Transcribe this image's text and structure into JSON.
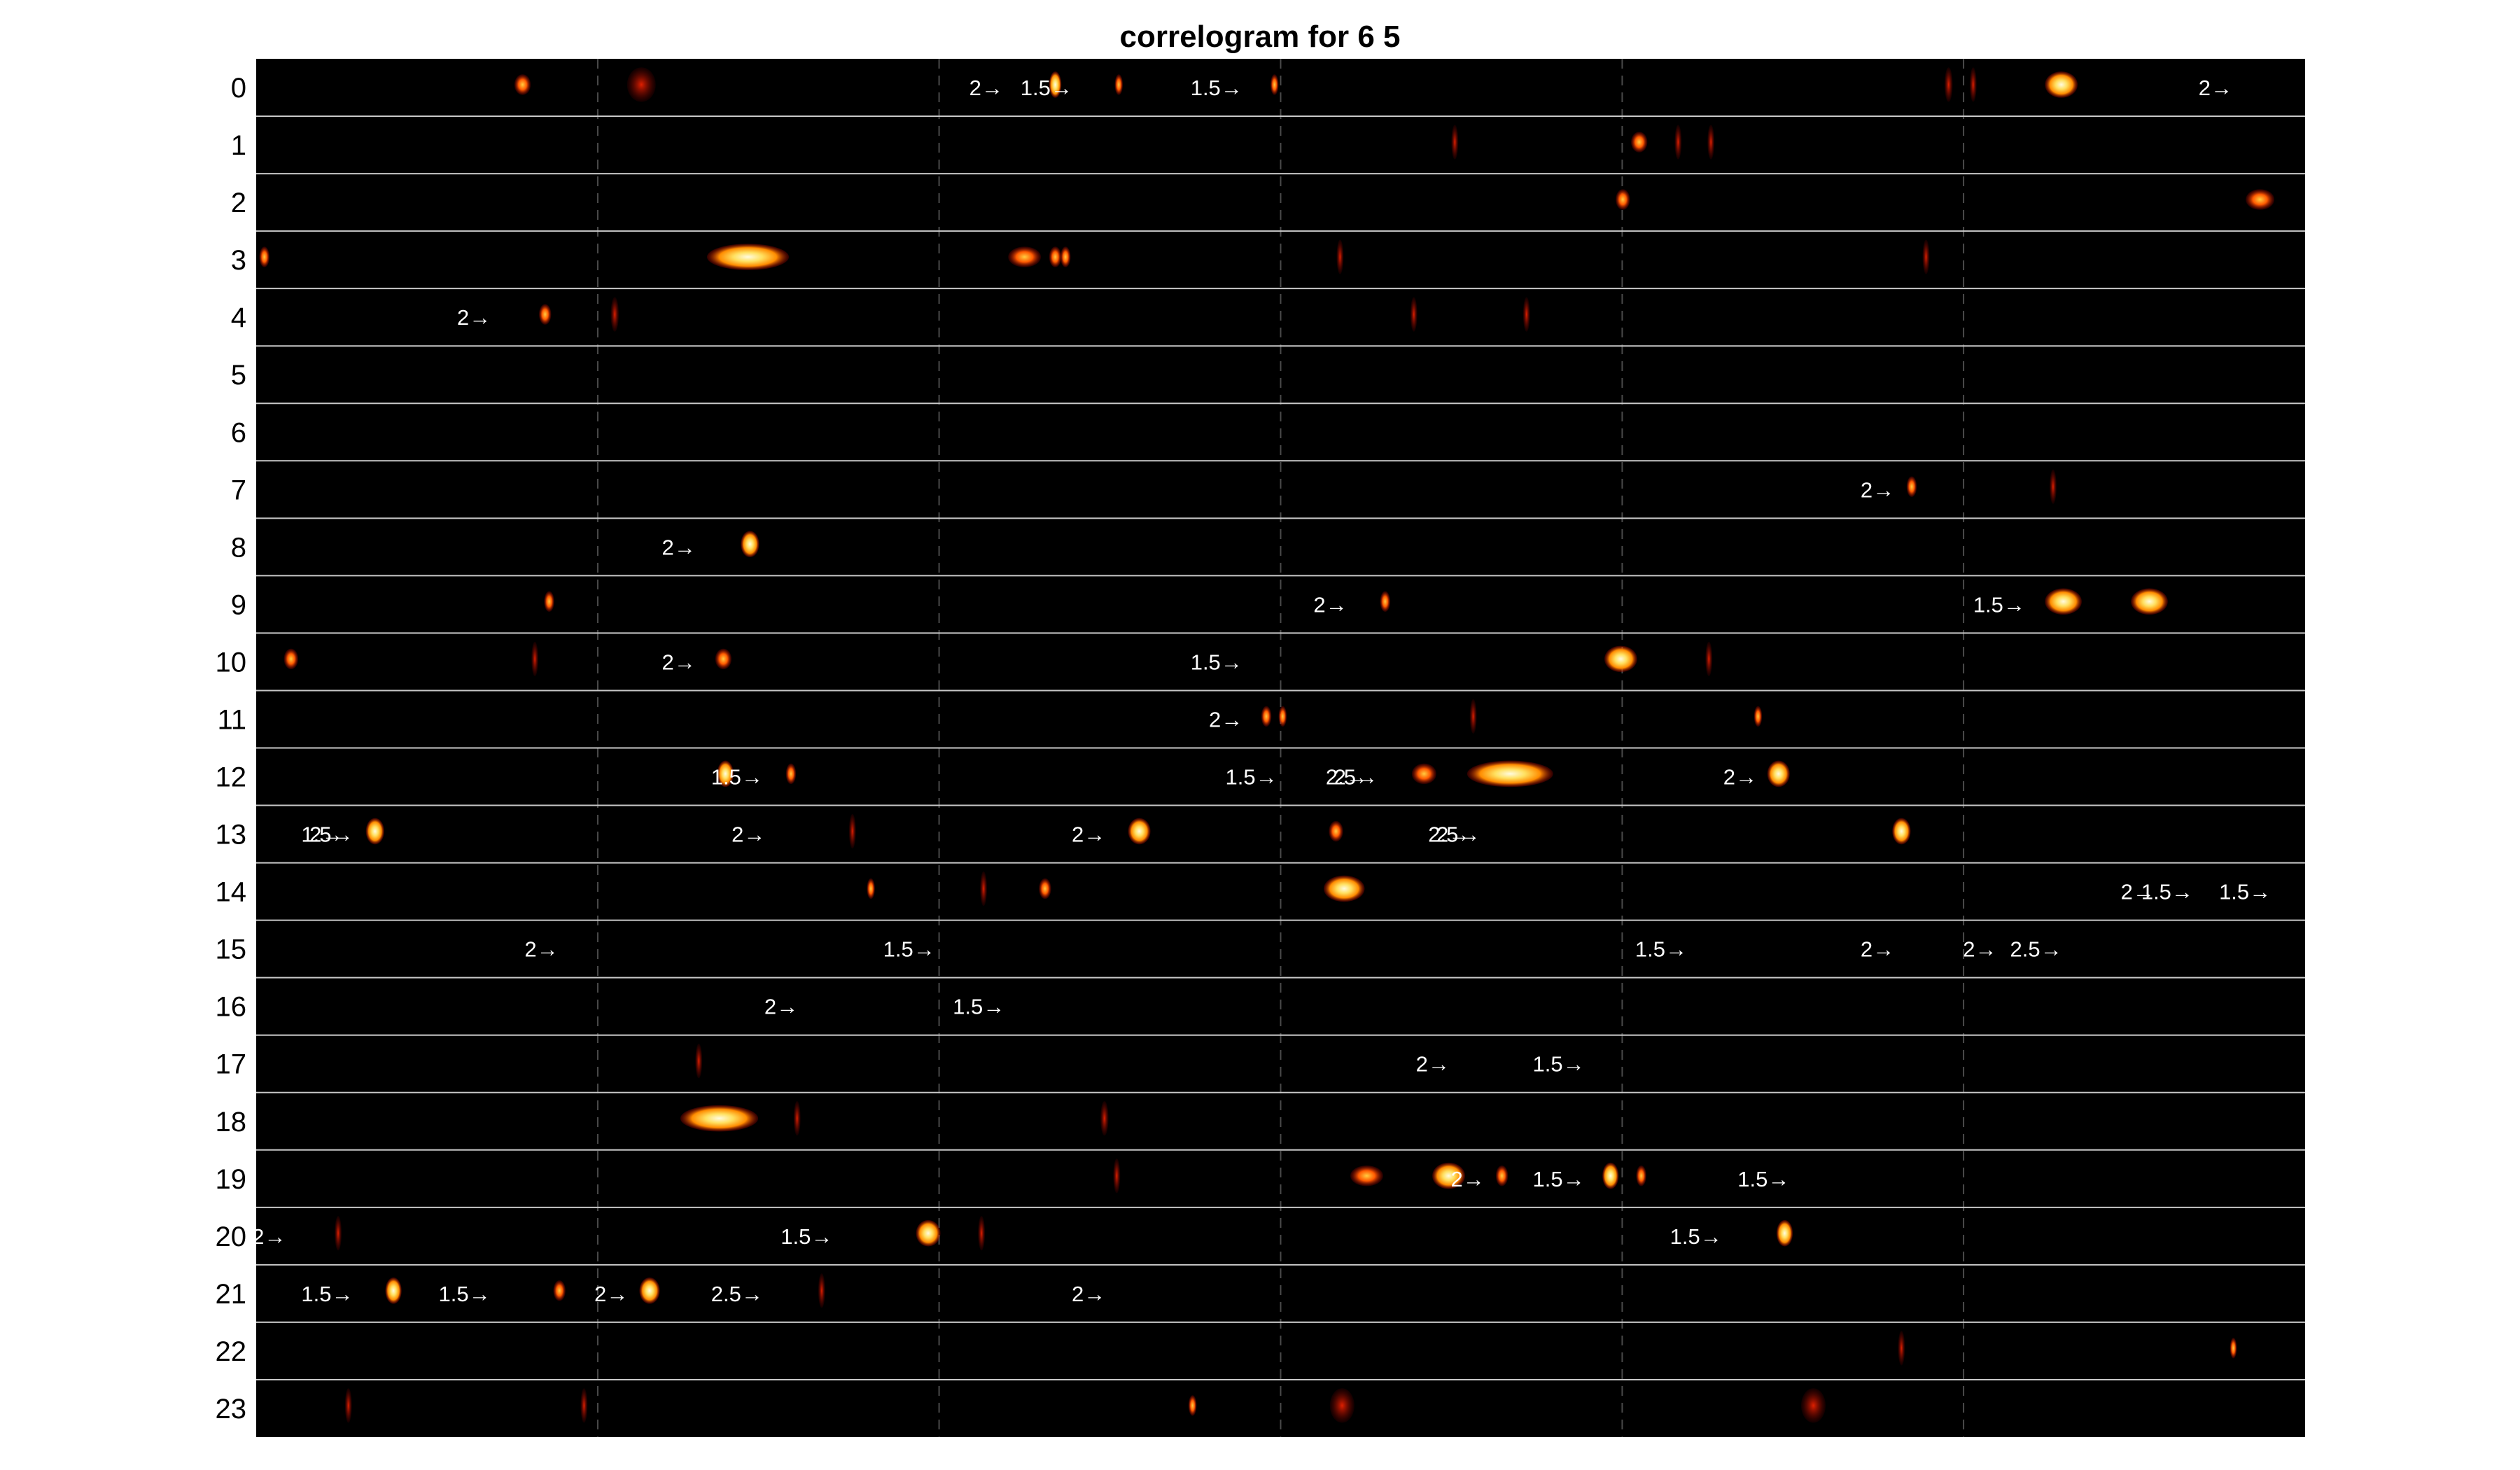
{
  "chart_data": {
    "type": "heatmap",
    "title": "correlogram for 6  5",
    "rows": [
      "0",
      "1",
      "2",
      "3",
      "4",
      "5",
      "6",
      "7",
      "8",
      "9",
      "10",
      "11",
      "12",
      "13",
      "14",
      "15",
      "16",
      "17",
      "18",
      "19",
      "20",
      "21",
      "22",
      "23"
    ],
    "x_range": [
      0,
      1
    ],
    "vertical_dashed_dividers": [
      0.1667,
      0.3333,
      0.5,
      0.6667,
      0.8333
    ],
    "grid": true,
    "colormap": "hot",
    "colors": {
      "background": "#000000",
      "separator": "#c8c8c8",
      "divider": "#4a4a4a",
      "low": "#c00000",
      "mid": "#ff9a00",
      "high": "#fff7b0"
    },
    "blobs": [
      {
        "row": 0,
        "x": 0.13,
        "w": 0.008,
        "i": 0.8
      },
      {
        "row": 0,
        "x": 0.188,
        "w": 0.014,
        "i": 0.4
      },
      {
        "row": 0,
        "x": 0.39,
        "w": 0.006,
        "i": 0.9
      },
      {
        "row": 0,
        "x": 0.421,
        "w": 0.004,
        "i": 0.7
      },
      {
        "row": 0,
        "x": 0.497,
        "w": 0.004,
        "i": 0.7
      },
      {
        "row": 0,
        "x": 0.826,
        "w": 0.004,
        "i": 0.4
      },
      {
        "row": 0,
        "x": 0.838,
        "w": 0.003,
        "i": 0.4
      },
      {
        "row": 0,
        "x": 0.881,
        "w": 0.016,
        "i": 1.0
      },
      {
        "row": 1,
        "x": 0.585,
        "w": 0.003,
        "i": 0.4
      },
      {
        "row": 1,
        "x": 0.675,
        "w": 0.008,
        "i": 0.8
      },
      {
        "row": 1,
        "x": 0.694,
        "w": 0.003,
        "i": 0.4
      },
      {
        "row": 1,
        "x": 0.71,
        "w": 0.003,
        "i": 0.4
      },
      {
        "row": 2,
        "x": 0.667,
        "w": 0.007,
        "i": 0.7
      },
      {
        "row": 2,
        "x": 0.978,
        "w": 0.014,
        "i": 0.8
      },
      {
        "row": 3,
        "x": 0.004,
        "w": 0.005,
        "i": 0.7
      },
      {
        "row": 3,
        "x": 0.24,
        "w": 0.04,
        "i": 1.0
      },
      {
        "row": 3,
        "x": 0.375,
        "w": 0.016,
        "i": 0.7
      },
      {
        "row": 3,
        "x": 0.39,
        "w": 0.006,
        "i": 0.8
      },
      {
        "row": 3,
        "x": 0.395,
        "w": 0.005,
        "i": 0.7
      },
      {
        "row": 3,
        "x": 0.529,
        "w": 0.003,
        "i": 0.5
      },
      {
        "row": 3,
        "x": 0.815,
        "w": 0.003,
        "i": 0.4
      },
      {
        "row": 4,
        "x": 0.141,
        "w": 0.006,
        "i": 0.7
      },
      {
        "row": 4,
        "x": 0.175,
        "w": 0.004,
        "i": 0.3
      },
      {
        "row": 4,
        "x": 0.565,
        "w": 0.003,
        "i": 0.4
      },
      {
        "row": 4,
        "x": 0.62,
        "w": 0.003,
        "i": 0.4
      },
      {
        "row": 7,
        "x": 0.808,
        "w": 0.005,
        "i": 0.7
      },
      {
        "row": 7,
        "x": 0.877,
        "w": 0.003,
        "i": 0.5
      },
      {
        "row": 8,
        "x": 0.241,
        "w": 0.009,
        "i": 0.9
      },
      {
        "row": 9,
        "x": 0.143,
        "w": 0.005,
        "i": 0.6
      },
      {
        "row": 9,
        "x": 0.551,
        "w": 0.005,
        "i": 0.8
      },
      {
        "row": 9,
        "x": 0.882,
        "w": 0.018,
        "i": 1.0
      },
      {
        "row": 9,
        "x": 0.924,
        "w": 0.018,
        "i": 1.0
      },
      {
        "row": 10,
        "x": 0.017,
        "w": 0.007,
        "i": 0.8
      },
      {
        "row": 10,
        "x": 0.136,
        "w": 0.003,
        "i": 0.5
      },
      {
        "row": 10,
        "x": 0.228,
        "w": 0.008,
        "i": 0.8
      },
      {
        "row": 10,
        "x": 0.666,
        "w": 0.016,
        "i": 1.0
      },
      {
        "row": 10,
        "x": 0.709,
        "w": 0.003,
        "i": 0.5
      },
      {
        "row": 11,
        "x": 0.493,
        "w": 0.005,
        "i": 0.8
      },
      {
        "row": 11,
        "x": 0.501,
        "w": 0.004,
        "i": 0.6
      },
      {
        "row": 11,
        "x": 0.594,
        "w": 0.003,
        "i": 0.5
      },
      {
        "row": 11,
        "x": 0.733,
        "w": 0.004,
        "i": 0.7
      },
      {
        "row": 12,
        "x": 0.229,
        "w": 0.008,
        "i": 0.9
      },
      {
        "row": 12,
        "x": 0.261,
        "w": 0.005,
        "i": 0.7
      },
      {
        "row": 12,
        "x": 0.57,
        "w": 0.012,
        "i": 0.8
      },
      {
        "row": 12,
        "x": 0.612,
        "w": 0.042,
        "i": 1.0
      },
      {
        "row": 12,
        "x": 0.743,
        "w": 0.011,
        "i": 0.9
      },
      {
        "row": 13,
        "x": 0.058,
        "w": 0.009,
        "i": 0.9
      },
      {
        "row": 13,
        "x": 0.291,
        "w": 0.003,
        "i": 0.5
      },
      {
        "row": 13,
        "x": 0.431,
        "w": 0.011,
        "i": 0.9
      },
      {
        "row": 13,
        "x": 0.527,
        "w": 0.007,
        "i": 0.8
      },
      {
        "row": 13,
        "x": 0.803,
        "w": 0.009,
        "i": 0.9
      },
      {
        "row": 14,
        "x": 0.3,
        "w": 0.004,
        "i": 0.7
      },
      {
        "row": 14,
        "x": 0.355,
        "w": 0.003,
        "i": 0.5
      },
      {
        "row": 14,
        "x": 0.385,
        "w": 0.006,
        "i": 0.8
      },
      {
        "row": 14,
        "x": 0.531,
        "w": 0.02,
        "i": 1.0
      },
      {
        "row": 17,
        "x": 0.216,
        "w": 0.003,
        "i": 0.4
      },
      {
        "row": 18,
        "x": 0.226,
        "w": 0.038,
        "i": 1.0
      },
      {
        "row": 18,
        "x": 0.264,
        "w": 0.003,
        "i": 0.5
      },
      {
        "row": 18,
        "x": 0.414,
        "w": 0.004,
        "i": 0.5
      },
      {
        "row": 19,
        "x": 0.42,
        "w": 0.003,
        "i": 0.4
      },
      {
        "row": 19,
        "x": 0.542,
        "w": 0.016,
        "i": 0.7
      },
      {
        "row": 19,
        "x": 0.582,
        "w": 0.016,
        "i": 0.9
      },
      {
        "row": 19,
        "x": 0.608,
        "w": 0.006,
        "i": 0.8
      },
      {
        "row": 19,
        "x": 0.661,
        "w": 0.008,
        "i": 0.9
      },
      {
        "row": 19,
        "x": 0.676,
        "w": 0.005,
        "i": 0.8
      },
      {
        "row": 20,
        "x": 0.04,
        "w": 0.002,
        "i": 0.4
      },
      {
        "row": 20,
        "x": 0.328,
        "w": 0.012,
        "i": 1.0
      },
      {
        "row": 20,
        "x": 0.354,
        "w": 0.003,
        "i": 0.5
      },
      {
        "row": 20,
        "x": 0.746,
        "w": 0.008,
        "i": 0.9
      },
      {
        "row": 21,
        "x": 0.067,
        "w": 0.008,
        "i": 0.9
      },
      {
        "row": 21,
        "x": 0.148,
        "w": 0.006,
        "i": 0.8
      },
      {
        "row": 21,
        "x": 0.192,
        "w": 0.01,
        "i": 0.9
      },
      {
        "row": 21,
        "x": 0.276,
        "w": 0.003,
        "i": 0.4
      },
      {
        "row": 22,
        "x": 0.803,
        "w": 0.003,
        "i": 0.3
      },
      {
        "row": 22,
        "x": 0.965,
        "w": 0.003,
        "i": 0.6
      },
      {
        "row": 23,
        "x": 0.045,
        "w": 0.002,
        "i": 0.5
      },
      {
        "row": 23,
        "x": 0.16,
        "w": 0.003,
        "i": 0.5
      },
      {
        "row": 23,
        "x": 0.457,
        "w": 0.004,
        "i": 0.7
      },
      {
        "row": 23,
        "x": 0.53,
        "w": 0.012,
        "i": 0.5
      },
      {
        "row": 23,
        "x": 0.76,
        "w": 0.012,
        "i": 0.3
      }
    ],
    "annotations": [
      {
        "row": 0,
        "x": 0.348,
        "text": "2→"
      },
      {
        "row": 0,
        "x": 0.373,
        "text": "1.5→"
      },
      {
        "row": 0,
        "x": 0.456,
        "text": "1.5→"
      },
      {
        "row": 0,
        "x": 0.948,
        "text": "2→"
      },
      {
        "row": 4,
        "x": 0.098,
        "text": "2→"
      },
      {
        "row": 7,
        "x": 0.783,
        "text": "2→"
      },
      {
        "row": 8,
        "x": 0.198,
        "text": "2→"
      },
      {
        "row": 9,
        "x": 0.516,
        "text": "2→"
      },
      {
        "row": 9,
        "x": 0.838,
        "text": "1.5→"
      },
      {
        "row": 10,
        "x": 0.198,
        "text": "2→"
      },
      {
        "row": 10,
        "x": 0.456,
        "text": "1.5→"
      },
      {
        "row": 11,
        "x": 0.465,
        "text": "2→"
      },
      {
        "row": 12,
        "x": 0.222,
        "text": "1.5→"
      },
      {
        "row": 12,
        "x": 0.473,
        "text": "1.5→"
      },
      {
        "row": 12,
        "x": 0.522,
        "text": "2.5→"
      },
      {
        "row": 12,
        "x": 0.526,
        "text": "2→"
      },
      {
        "row": 12,
        "x": 0.716,
        "text": "2→"
      },
      {
        "row": 13,
        "x": 0.022,
        "text": "1.5→"
      },
      {
        "row": 13,
        "x": 0.026,
        "text": "2→"
      },
      {
        "row": 13,
        "x": 0.232,
        "text": "2→"
      },
      {
        "row": 13,
        "x": 0.398,
        "text": "2→"
      },
      {
        "row": 13,
        "x": 0.572,
        "text": "2.5→"
      },
      {
        "row": 13,
        "x": 0.576,
        "text": "2→"
      },
      {
        "row": 14,
        "x": 0.91,
        "text": "2→"
      },
      {
        "row": 14,
        "x": 0.92,
        "text": "1.5→"
      },
      {
        "row": 14,
        "x": 0.958,
        "text": "1.5→"
      },
      {
        "row": 15,
        "x": 0.131,
        "text": "2→"
      },
      {
        "row": 15,
        "x": 0.306,
        "text": "1.5→"
      },
      {
        "row": 15,
        "x": 0.673,
        "text": "1.5→"
      },
      {
        "row": 15,
        "x": 0.783,
        "text": "2→"
      },
      {
        "row": 15,
        "x": 0.833,
        "text": "2→"
      },
      {
        "row": 15,
        "x": 0.856,
        "text": "2.5→"
      },
      {
        "row": 16,
        "x": 0.248,
        "text": "2→"
      },
      {
        "row": 16,
        "x": 0.34,
        "text": "1.5→"
      },
      {
        "row": 17,
        "x": 0.566,
        "text": "2→"
      },
      {
        "row": 17,
        "x": 0.623,
        "text": "1.5→"
      },
      {
        "row": 19,
        "x": 0.583,
        "text": "2→"
      },
      {
        "row": 19,
        "x": 0.623,
        "text": "1.5→"
      },
      {
        "row": 19,
        "x": 0.723,
        "text": "1.5→"
      },
      {
        "row": 20,
        "x": -0.002,
        "text": "2→"
      },
      {
        "row": 20,
        "x": 0.256,
        "text": "1.5→"
      },
      {
        "row": 20,
        "x": 0.69,
        "text": "1.5→"
      },
      {
        "row": 21,
        "x": 0.022,
        "text": "1.5→"
      },
      {
        "row": 21,
        "x": 0.089,
        "text": "1.5→"
      },
      {
        "row": 21,
        "x": 0.165,
        "text": "2→"
      },
      {
        "row": 21,
        "x": 0.222,
        "text": "2.5→"
      },
      {
        "row": 21,
        "x": 0.398,
        "text": "2→"
      }
    ]
  }
}
